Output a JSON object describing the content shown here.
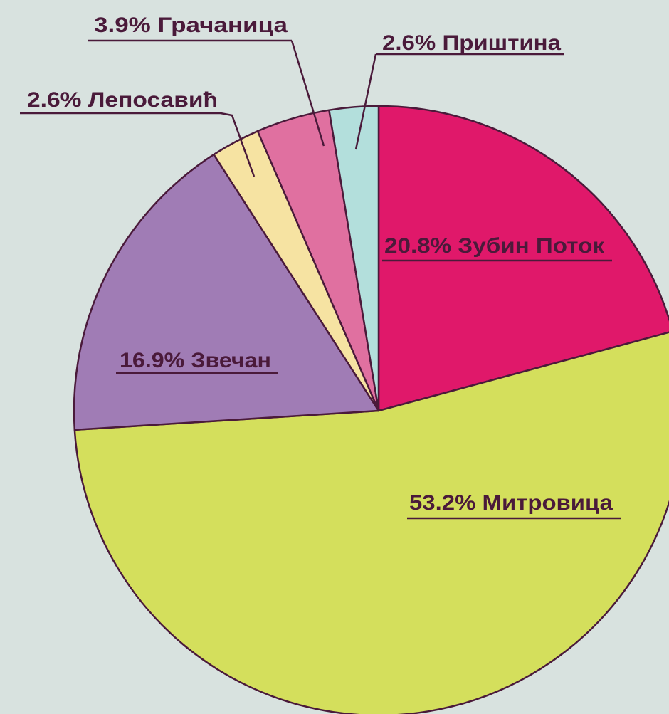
{
  "chart_data": {
    "type": "pie",
    "categories": [
      "Зубин Поток",
      "Митровица",
      "Звечан",
      "Лепосавић",
      "Грачаница",
      "Приштина"
    ],
    "values": [
      20.8,
      53.2,
      16.9,
      2.6,
      3.9,
      2.6
    ],
    "value_labels": [
      "20.8%",
      "53.2%",
      "16.9%",
      "2.6%",
      "3.9%",
      "2.6%"
    ],
    "colors": [
      "#e0186a",
      "#d4df5c",
      "#a07cb5",
      "#f6e3a2",
      "#e070a0",
      "#b3dfdc"
    ]
  }
}
